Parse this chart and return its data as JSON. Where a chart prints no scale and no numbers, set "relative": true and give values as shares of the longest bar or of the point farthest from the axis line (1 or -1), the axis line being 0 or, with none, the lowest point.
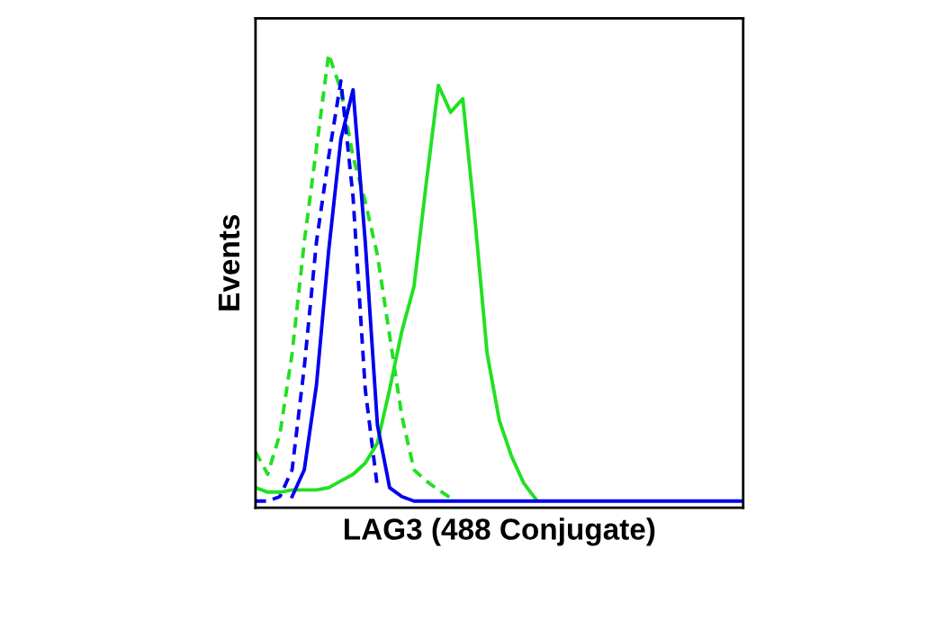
{
  "chart_data": {
    "type": "line",
    "relative": true,
    "xlabel": "LAG3 (488 Conjugate)",
    "ylabel": "Events",
    "tick_labels": false,
    "grid": false,
    "legend": false,
    "categories": [
      null,
      null,
      null,
      null,
      null,
      null,
      null,
      null,
      null,
      null,
      null,
      null,
      null,
      null,
      null,
      null,
      null,
      null,
      null,
      null,
      null,
      null,
      null,
      null,
      null,
      null,
      null,
      null,
      null,
      null,
      null,
      null,
      null,
      null,
      null,
      null,
      null,
      null,
      null,
      null,
      null
    ],
    "series": [
      {
        "color": "#22e022",
        "line_style": "dashed",
        "values": [
          0.11,
          0.06,
          0.15,
          0.33,
          0.58,
          0.79,
          1.0,
          0.92,
          0.77,
          0.67,
          0.55,
          0.37,
          0.19,
          0.07,
          0.045,
          0.025,
          0.007,
          null,
          null,
          null,
          null,
          null,
          null,
          null,
          null,
          null,
          null,
          null,
          null,
          null,
          null,
          null,
          null,
          null,
          null,
          null,
          null,
          null,
          null,
          null,
          null
        ]
      },
      {
        "color": "#0000ee",
        "line_style": "dashed",
        "values": [
          0,
          0,
          0.01,
          0.07,
          0.3,
          0.58,
          0.77,
          0.94,
          0.68,
          0.25,
          0.03,
          null,
          null,
          null,
          null,
          null,
          null,
          null,
          null,
          null,
          null,
          null,
          null,
          null,
          null,
          null,
          null,
          null,
          null,
          null,
          null,
          null,
          null,
          null,
          null,
          null,
          null,
          null,
          null,
          null,
          null
        ]
      },
      {
        "color": "#22e022",
        "line_style": "solid",
        "values": [
          0.03,
          0.02,
          0.02,
          0.025,
          0.025,
          0.025,
          0.03,
          0.045,
          0.06,
          0.085,
          0.13,
          0.25,
          0.38,
          0.48,
          0.71,
          0.93,
          0.87,
          0.9,
          0.63,
          0.33,
          0.18,
          0.1,
          0.04,
          0.004,
          null,
          null,
          null,
          null,
          null,
          null,
          null,
          null,
          null,
          null,
          null,
          null,
          null,
          null,
          null,
          null,
          null
        ]
      },
      {
        "color": "#0000ee",
        "line_style": "solid",
        "values": [
          null,
          null,
          null,
          0.01,
          0.07,
          0.26,
          0.56,
          0.81,
          0.92,
          0.58,
          0.17,
          0.03,
          0.01,
          0,
          0,
          0,
          0,
          0,
          0,
          0,
          0,
          0,
          0,
          0,
          0,
          0,
          0,
          0,
          0,
          0,
          0,
          0,
          0,
          0,
          0,
          0,
          0,
          0,
          0,
          0,
          0
        ]
      }
    ]
  }
}
